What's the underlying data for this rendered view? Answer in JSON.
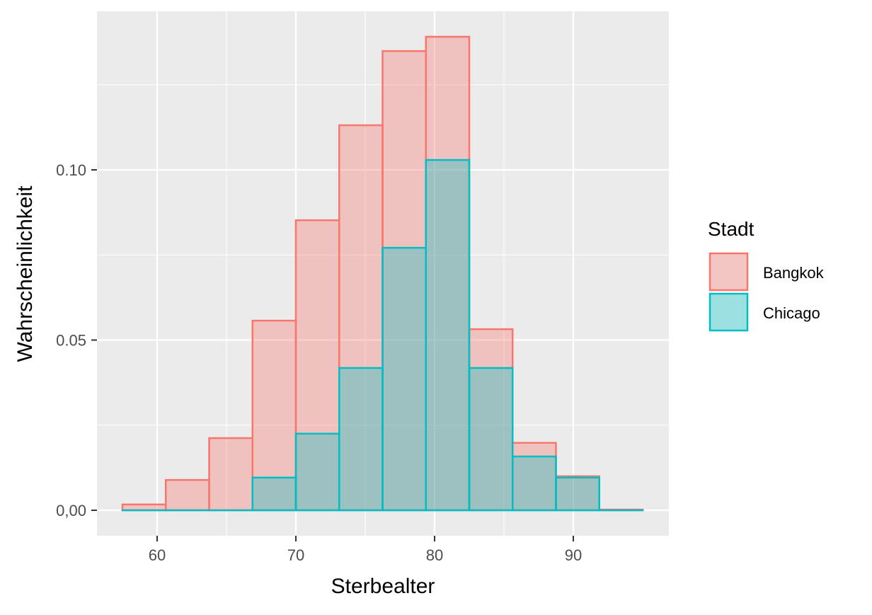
{
  "chart_data": {
    "type": "bar",
    "subtype": "overlapping-histogram",
    "title": "",
    "xlabel": "Sterbealter",
    "ylabel": "Wahrscheinlichkeit",
    "xlim": [
      55,
      96
    ],
    "ylim": [
      -0.006,
      0.148
    ],
    "x_ticks": [
      60,
      70,
      80,
      90
    ],
    "x_tick_labels": [
      "60",
      "70",
      "80",
      "90"
    ],
    "y_ticks": [
      0,
      0.05,
      0.1
    ],
    "y_tick_labels": [
      "0,00",
      "0.05",
      "0.10"
    ],
    "bin_edges": [
      57.5,
      60.625,
      63.75,
      66.875,
      70,
      73.125,
      76.25,
      79.375,
      82.5,
      85.625,
      88.75,
      91.875,
      95
    ],
    "series": [
      {
        "name": "Bangkok",
        "color": "#F8766D",
        "values": [
          0.0017,
          0.0089,
          0.0212,
          0.0557,
          0.0852,
          0.1131,
          0.1349,
          0.1391,
          0.0532,
          0.0198,
          0.01,
          0.0002
        ]
      },
      {
        "name": "Chicago",
        "color": "#00BFC4",
        "values": [
          0,
          0,
          0,
          0.0096,
          0.0225,
          0.0418,
          0.0771,
          0.1029,
          0.0418,
          0.0158,
          0.0096,
          0
        ]
      }
    ],
    "legend": {
      "title": "Stadt",
      "position": "right"
    },
    "grid": true
  }
}
